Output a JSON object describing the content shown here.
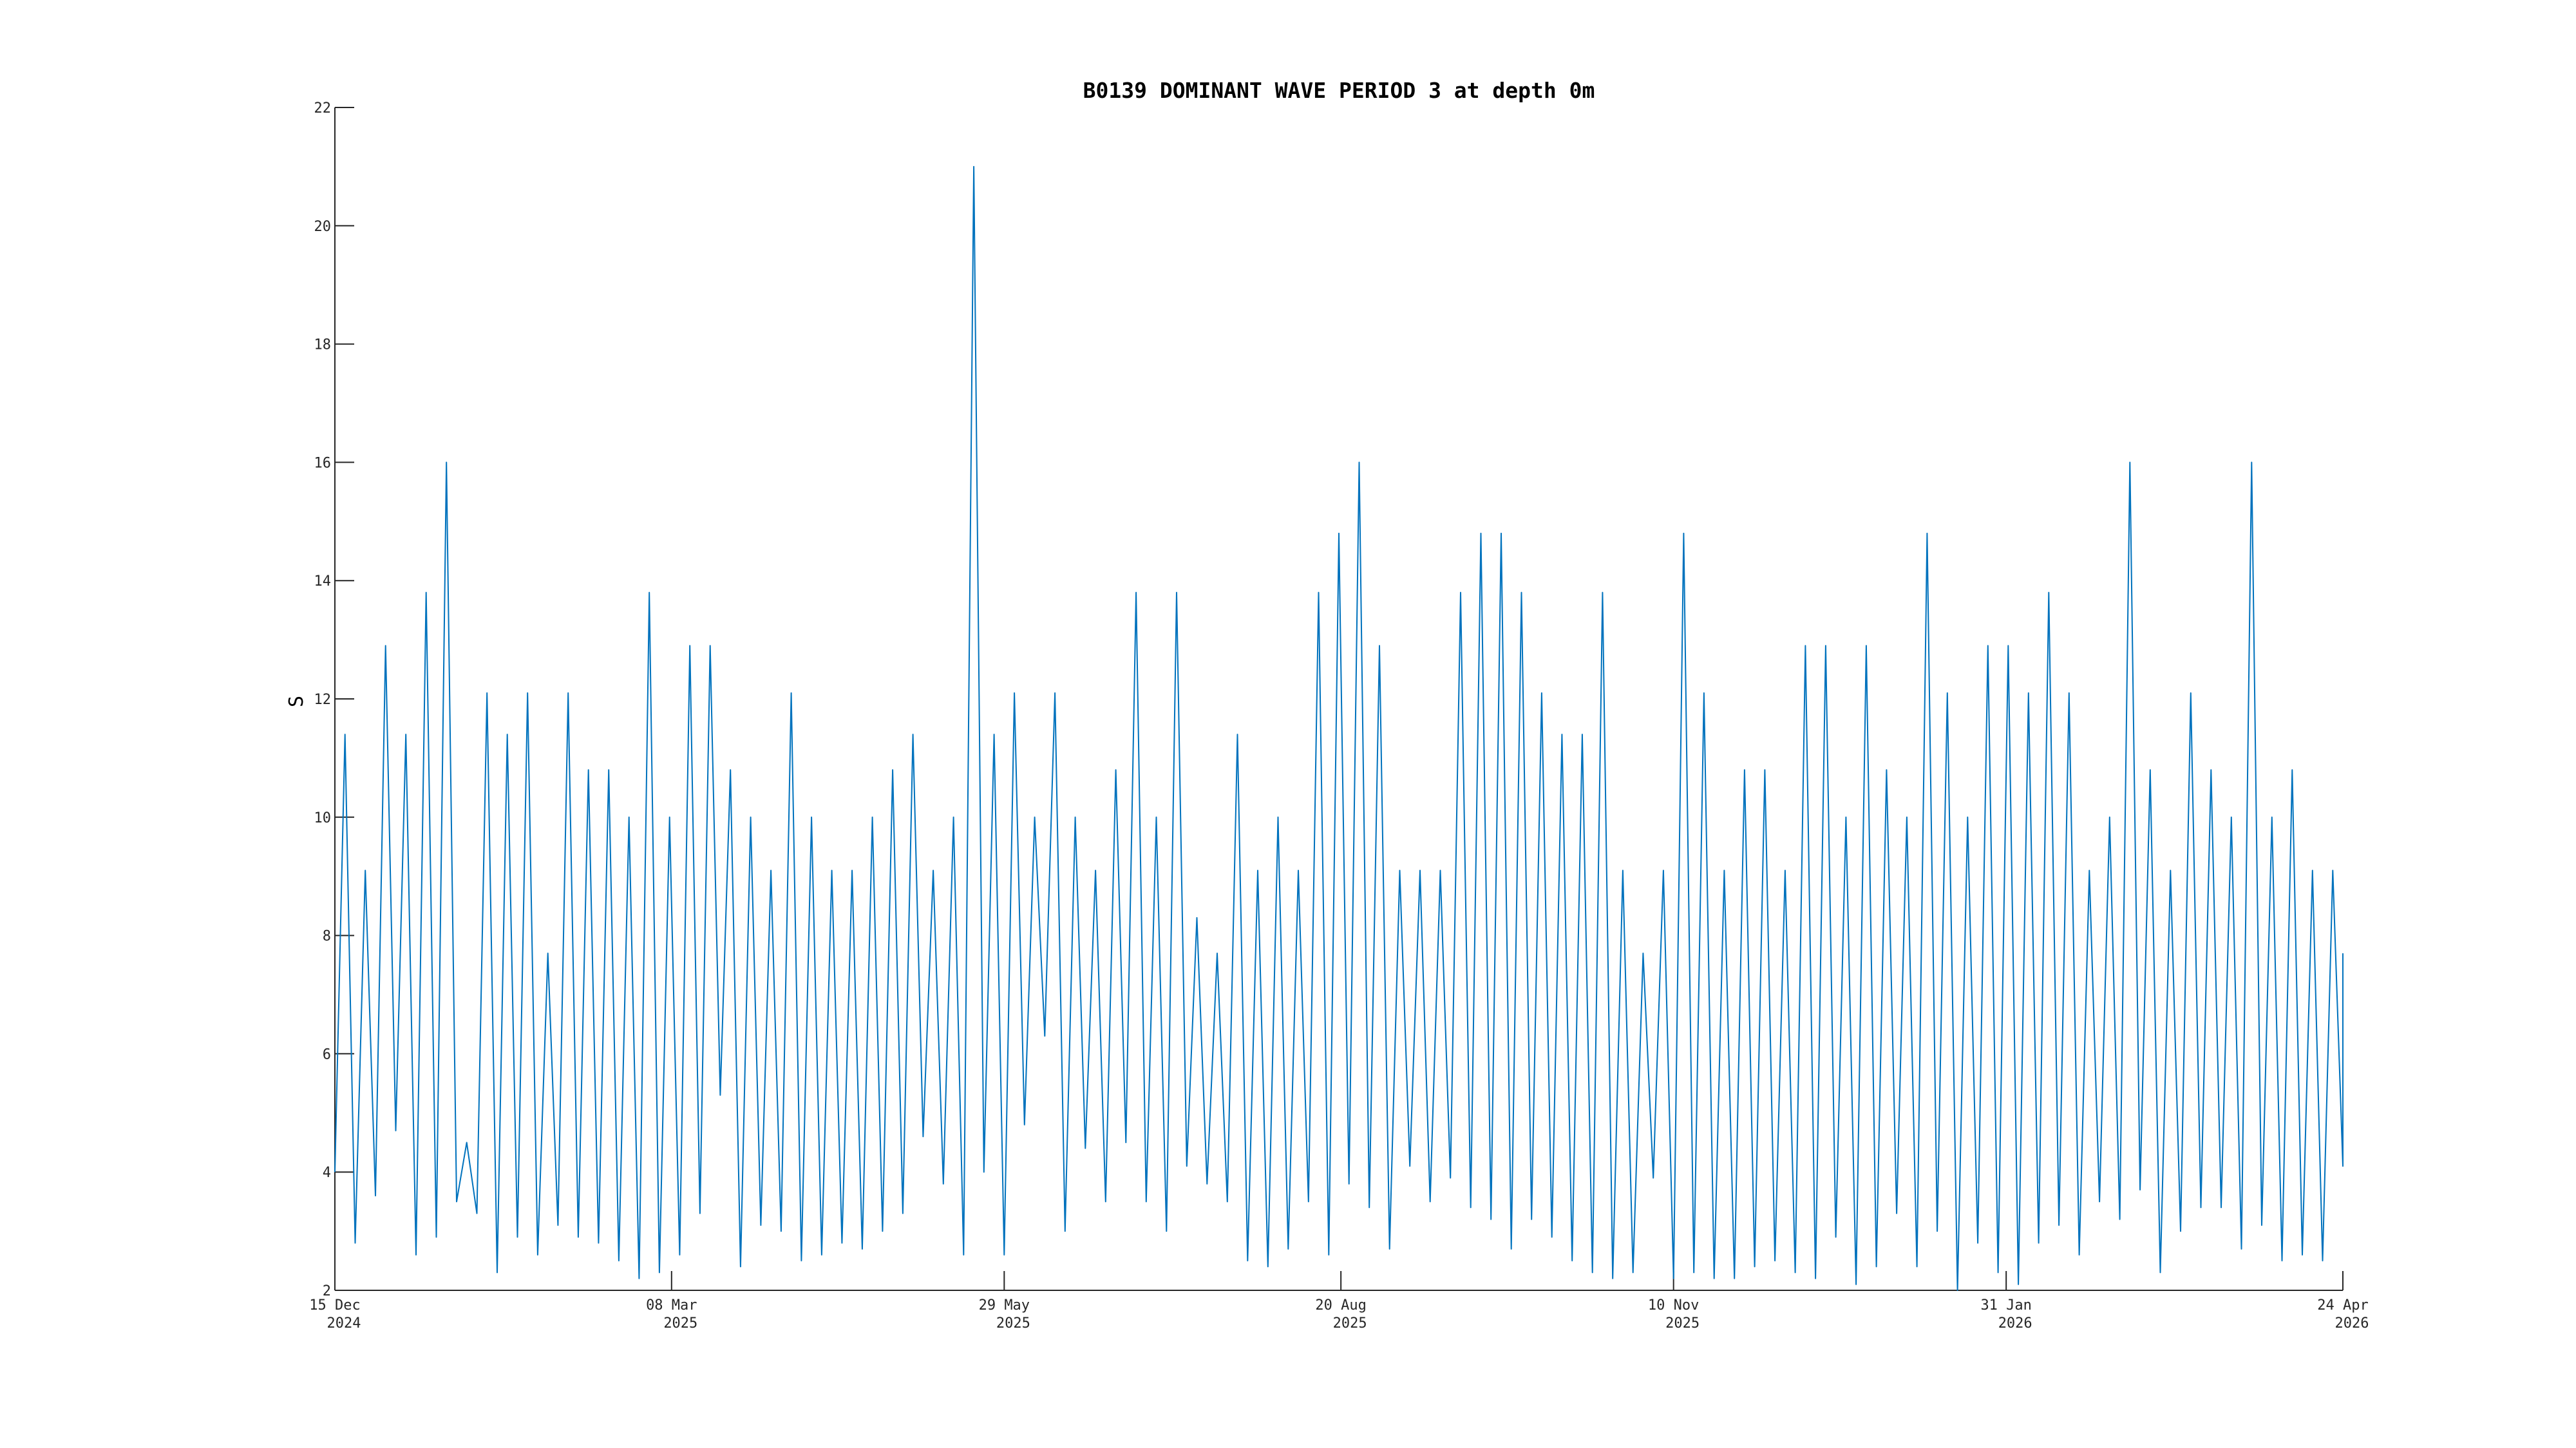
{
  "chart_data": {
    "type": "line",
    "title": "B0139 DOMINANT WAVE PERIOD 3 at depth 0m",
    "xlabel": "",
    "ylabel": "S",
    "ylim": [
      2,
      22
    ],
    "xlim": [
      "2024-12-15",
      "2026-04-24"
    ],
    "yticks": [
      2,
      4,
      6,
      8,
      10,
      12,
      14,
      16,
      18,
      20,
      22
    ],
    "xticks": [
      {
        "date": "2024-12-15",
        "line1": "15 Dec",
        "line2": "2024"
      },
      {
        "date": "2025-03-08",
        "line1": "08 Mar",
        "line2": "2025"
      },
      {
        "date": "2025-05-29",
        "line1": "29 May",
        "line2": "2025"
      },
      {
        "date": "2025-08-20",
        "line1": "20 Aug",
        "line2": "2025"
      },
      {
        "date": "2025-11-10",
        "line1": "10 Nov",
        "line2": "2025"
      },
      {
        "date": "2026-01-31",
        "line1": "31 Jan",
        "line2": "2026"
      },
      {
        "date": "2026-04-24",
        "line1": "24 Apr",
        "line2": "2026"
      }
    ],
    "grid": false,
    "line_color": "#0072BD",
    "x": [
      "2024-12-15",
      "2024-12-20",
      "2024-12-25",
      "2024-12-30",
      "2025-01-04",
      "2025-01-09",
      "2025-01-14",
      "2025-01-19",
      "2025-01-24",
      "2025-01-29",
      "2025-02-03",
      "2025-02-08",
      "2025-02-13",
      "2025-02-18",
      "2025-02-23",
      "2025-02-28",
      "2025-03-05",
      "2025-03-10",
      "2025-03-15",
      "2025-03-20",
      "2025-03-25",
      "2025-03-30",
      "2025-04-04",
      "2025-04-09",
      "2025-04-14",
      "2025-04-19",
      "2025-04-24",
      "2025-04-29",
      "2025-05-04",
      "2025-05-09",
      "2025-05-14",
      "2025-05-19",
      "2025-05-24",
      "2025-05-29",
      "2025-06-03",
      "2025-06-08",
      "2025-06-13",
      "2025-06-18",
      "2025-06-23",
      "2025-06-28",
      "2025-07-03",
      "2025-07-08",
      "2025-07-13",
      "2025-07-18",
      "2025-07-23",
      "2025-07-28",
      "2025-08-02",
      "2025-08-07",
      "2025-08-12",
      "2025-08-17",
      "2025-08-22",
      "2025-08-27",
      "2025-09-01",
      "2025-09-06",
      "2025-09-11",
      "2025-09-16",
      "2025-09-21",
      "2025-09-26",
      "2025-10-01",
      "2025-10-06",
      "2025-10-11",
      "2025-10-16",
      "2025-10-21",
      "2025-10-26",
      "2025-10-31",
      "2025-11-05",
      "2025-11-10",
      "2025-11-15",
      "2025-11-20",
      "2025-11-25",
      "2025-11-30",
      "2025-12-05",
      "2025-12-10",
      "2025-12-15",
      "2025-12-20",
      "2025-12-25",
      "2025-12-30",
      "2026-01-04",
      "2026-01-09",
      "2026-01-14",
      "2026-01-19",
      "2026-01-24",
      "2026-01-29",
      "2026-02-03",
      "2026-02-08",
      "2026-02-13",
      "2026-02-18",
      "2026-02-23",
      "2026-02-28",
      "2026-03-05",
      "2026-03-10",
      "2026-03-15",
      "2026-03-20",
      "2026-03-25",
      "2026-03-30",
      "2026-04-04",
      "2026-04-09",
      "2026-04-14",
      "2026-04-19",
      "2026-04-24"
    ],
    "y": [
      [
        4,
        11.4
      ],
      [
        2.8,
        9.1
      ],
      [
        3.6,
        12.9
      ],
      [
        4.7,
        11.4
      ],
      [
        2.6,
        13.8
      ],
      [
        2.9,
        16
      ],
      [
        3.5,
        4.5
      ],
      [
        3.3,
        12.1
      ],
      [
        2.3,
        11.4
      ],
      [
        2.9,
        12.1
      ],
      [
        2.6,
        7.7
      ],
      [
        3.1,
        12.1
      ],
      [
        2.9,
        10.8
      ],
      [
        2.8,
        10.8
      ],
      [
        2.5,
        10
      ],
      [
        2.2,
        13.8
      ],
      [
        2.3,
        10
      ],
      [
        2.6,
        12.9
      ],
      [
        3.3,
        12.9
      ],
      [
        5.3,
        10.8
      ],
      [
        2.4,
        10
      ],
      [
        3.1,
        9.1
      ],
      [
        3.0,
        12.1
      ],
      [
        2.5,
        10
      ],
      [
        2.6,
        9.1
      ],
      [
        2.8,
        9.1
      ],
      [
        2.7,
        10
      ],
      [
        3.0,
        10.8
      ],
      [
        3.3,
        11.4
      ],
      [
        4.6,
        9.1
      ],
      [
        3.8,
        10
      ],
      [
        2.6,
        21
      ],
      [
        4.0,
        11.4
      ],
      [
        2.6,
        12.1
      ],
      [
        4.8,
        10
      ],
      [
        6.3,
        12.1
      ],
      [
        3.0,
        10
      ],
      [
        4.4,
        9.1
      ],
      [
        3.5,
        10.8
      ],
      [
        4.5,
        13.8
      ],
      [
        3.5,
        10
      ],
      [
        3.0,
        13.8
      ],
      [
        4.1,
        8.3
      ],
      [
        3.8,
        7.7
      ],
      [
        3.5,
        11.4
      ],
      [
        2.5,
        9.1
      ],
      [
        2.4,
        10
      ],
      [
        2.7,
        9.1
      ],
      [
        3.5,
        13.8
      ],
      [
        2.6,
        14.8
      ],
      [
        3.8,
        16
      ],
      [
        3.4,
        12.9
      ],
      [
        2.7,
        9.1
      ],
      [
        4.1,
        9.1
      ],
      [
        3.5,
        9.1
      ],
      [
        3.9,
        13.8
      ],
      [
        3.4,
        14.8
      ],
      [
        3.2,
        14.8
      ],
      [
        2.7,
        13.8
      ],
      [
        3.2,
        12.1
      ],
      [
        2.9,
        11.4
      ],
      [
        2.5,
        11.4
      ],
      [
        2.3,
        13.8
      ],
      [
        2.2,
        9.1
      ],
      [
        2.3,
        7.7
      ],
      [
        3.9,
        9.1
      ],
      [
        2.2,
        14.8
      ],
      [
        2.3,
        12.1
      ],
      [
        2.2,
        9.1
      ],
      [
        2.2,
        10.8
      ],
      [
        2.4,
        10.8
      ],
      [
        2.5,
        9.1
      ],
      [
        2.3,
        12.9
      ],
      [
        2.2,
        12.9
      ],
      [
        2.9,
        10
      ],
      [
        2.1,
        12.9
      ],
      [
        2.4,
        10.8
      ],
      [
        3.3,
        10
      ],
      [
        2.4,
        14.8
      ],
      [
        3.0,
        12.1
      ],
      [
        2.0,
        10
      ],
      [
        2.8,
        12.9
      ],
      [
        2.3,
        12.9
      ],
      [
        2.1,
        12.1
      ],
      [
        2.8,
        13.8
      ],
      [
        3.1,
        12.1
      ],
      [
        2.6,
        9.1
      ],
      [
        3.5,
        10
      ],
      [
        3.2,
        16
      ],
      [
        3.7,
        10.8
      ],
      [
        2.3,
        9.1
      ],
      [
        3.0,
        12.1
      ],
      [
        3.4,
        10.8
      ],
      [
        3.4,
        10
      ],
      [
        2.7,
        16
      ],
      [
        3.1,
        10
      ],
      [
        2.5,
        10.8
      ],
      [
        2.6,
        9.1
      ],
      [
        2.5,
        9.1
      ],
      [
        4.1,
        7.7
      ]
    ]
  }
}
